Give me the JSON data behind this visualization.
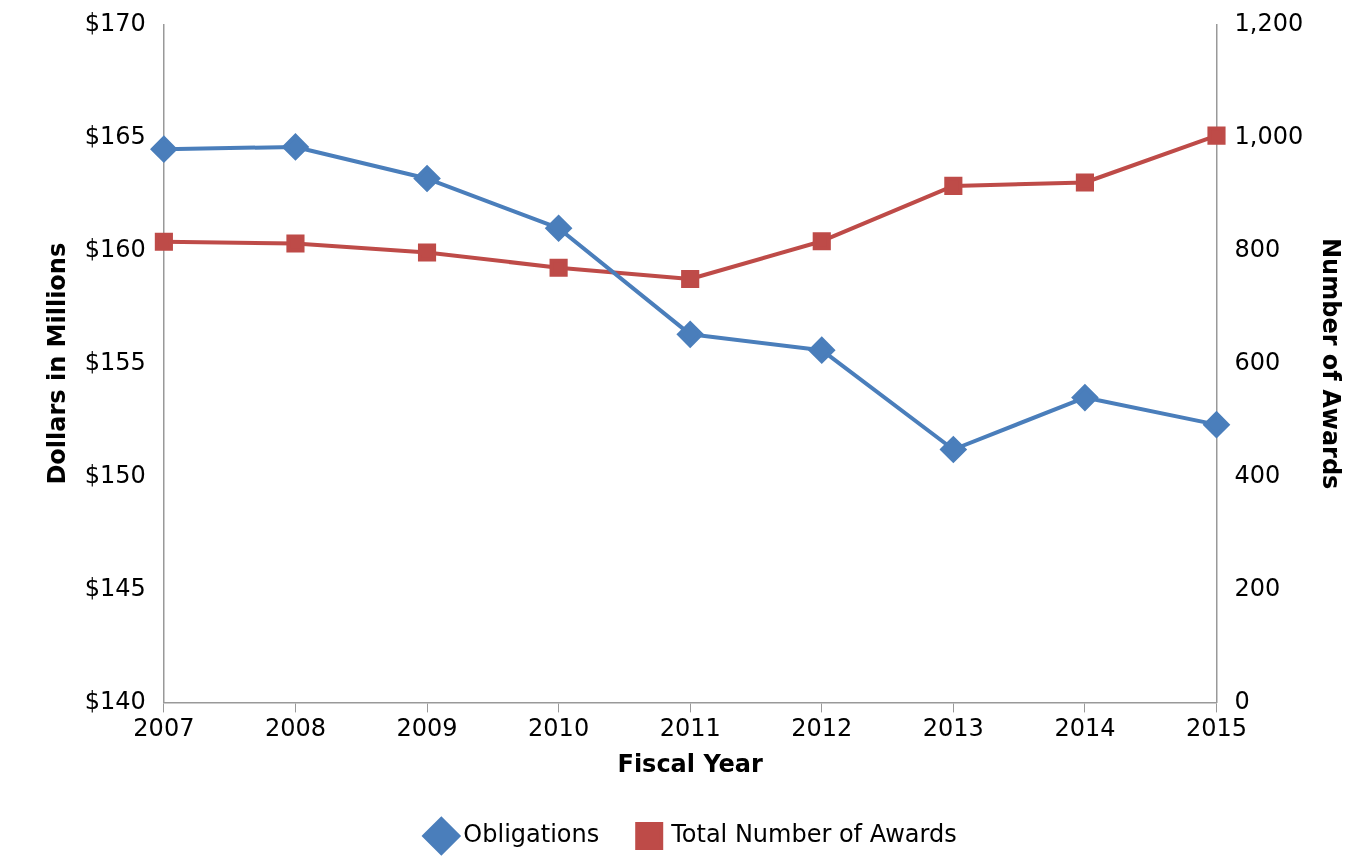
{
  "chart_data": {
    "type": "line",
    "xlabel": "Fiscal Year",
    "ylabel": "Dollars in Millions",
    "y2label": "Number of Awards",
    "categories": [
      "2007",
      "2008",
      "2009",
      "2010",
      "2011",
      "2012",
      "2013",
      "2014",
      "2015"
    ],
    "series": [
      {
        "name": "Obligations",
        "color": "#4a7ebb",
        "marker": "diamond",
        "values": [
          164.5,
          164.6,
          163.2,
          161.0,
          156.3,
          155.6,
          151.2,
          153.5,
          152.3
        ]
      },
      {
        "name": "Total Number of Awards",
        "color": "#be4b48",
        "marker": "square",
        "axis": "y2",
        "values": [
          816,
          813,
          797,
          770,
          750,
          817,
          915,
          921,
          1004
        ]
      }
    ],
    "ylim": [
      140,
      170
    ],
    "yticks": [
      {
        "value": 140,
        "label": "$140"
      },
      {
        "value": 145,
        "label": "$145"
      },
      {
        "value": 150,
        "label": "$150"
      },
      {
        "value": 155,
        "label": "$155"
      },
      {
        "value": 160,
        "label": "$160"
      },
      {
        "value": 165,
        "label": "$165"
      },
      {
        "value": 170,
        "label": "$170"
      }
    ],
    "y2lim": [
      0,
      1200
    ],
    "y2ticks": [
      0,
      200,
      400,
      600,
      800,
      {
        "value": 1000,
        "label": "1,000"
      },
      {
        "value": 1200,
        "label": "1,200"
      }
    ],
    "grid": false,
    "legend": "bottom",
    "line_style": "solid"
  }
}
